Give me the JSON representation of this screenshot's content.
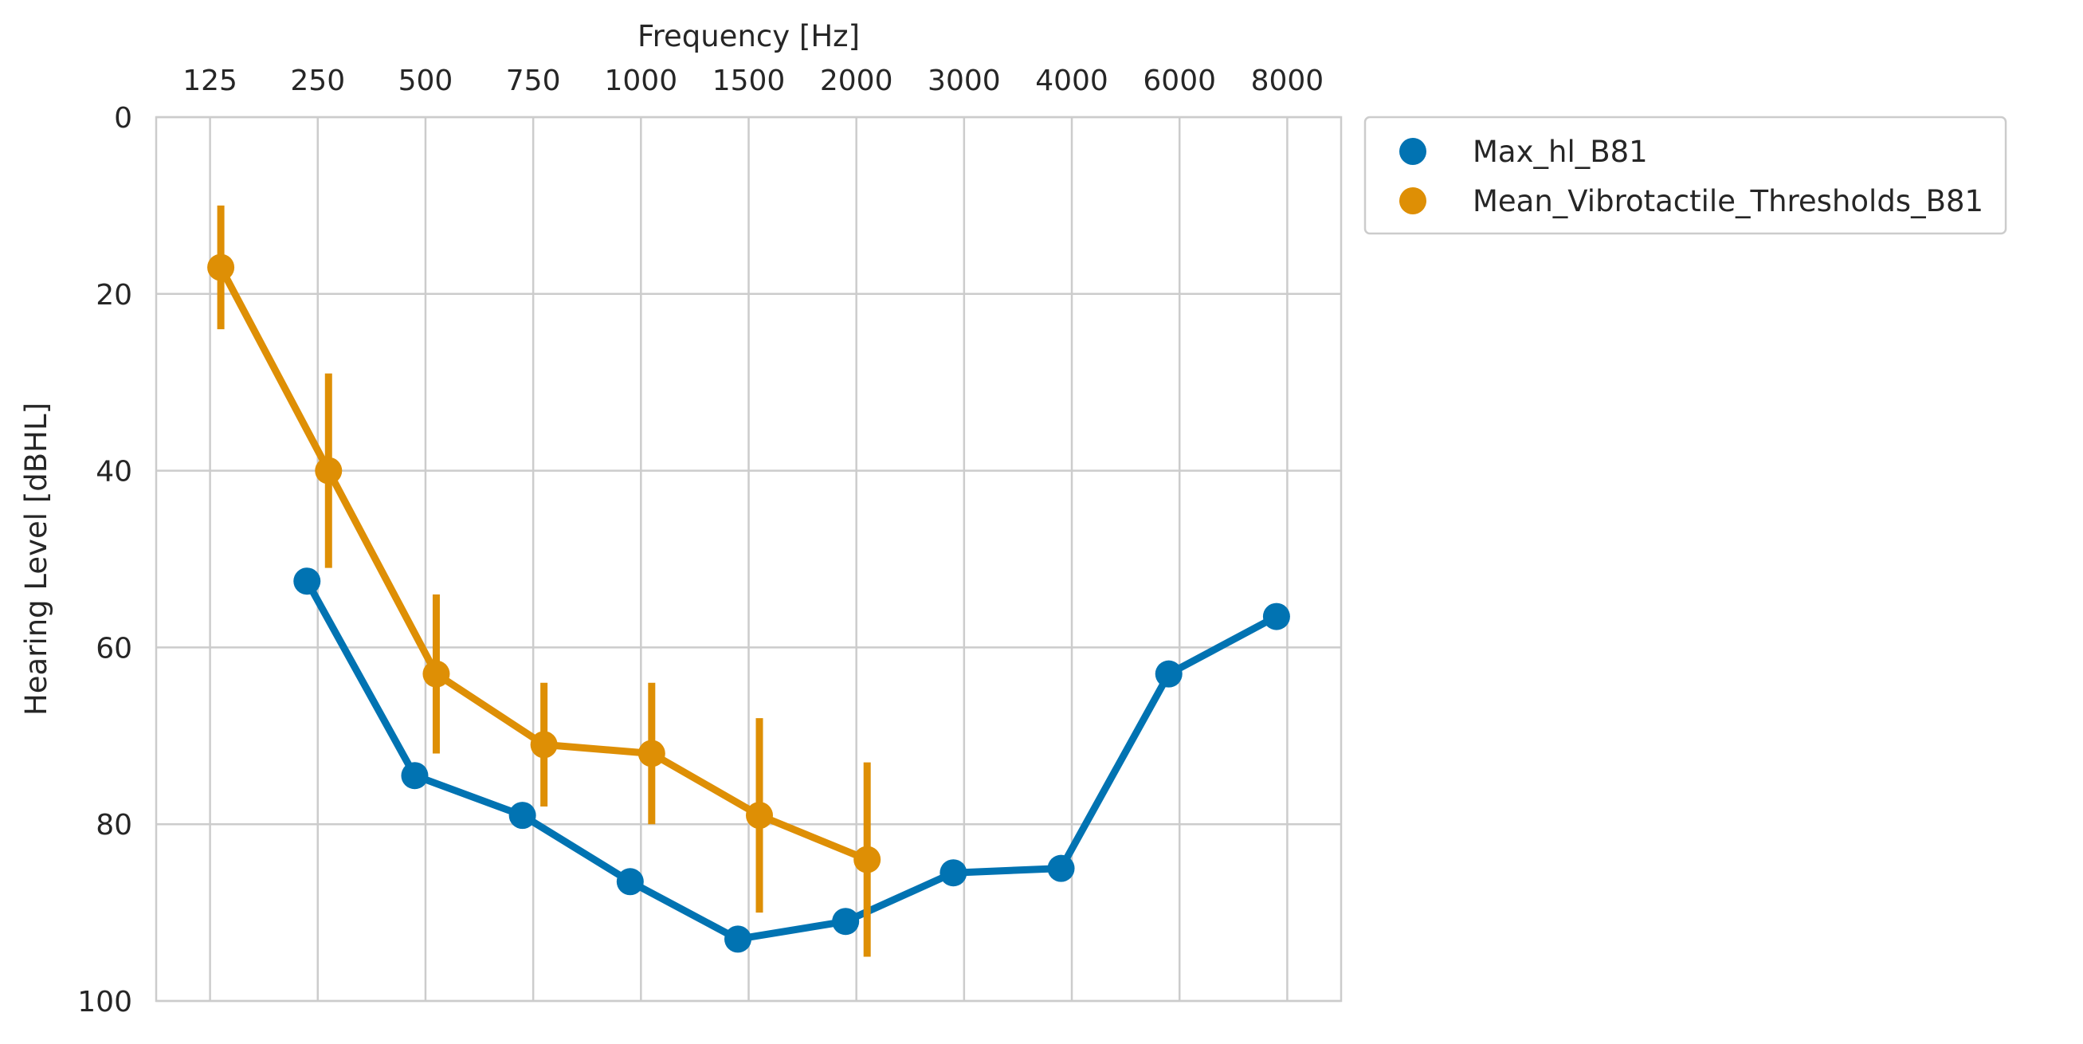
{
  "chart_data": {
    "type": "line",
    "title": "",
    "xlabel": "Frequency [Hz]",
    "ylabel": "Hearing Level [dBHL]",
    "categories": [
      "125",
      "250",
      "500",
      "750",
      "1000",
      "1500",
      "2000",
      "3000",
      "4000",
      "6000",
      "8000"
    ],
    "yticks": [
      "0",
      "20",
      "40",
      "60",
      "80",
      "100"
    ],
    "ylim": [
      0,
      100
    ],
    "y_inverted": true,
    "x_axis_position": "top",
    "grid": true,
    "legend": "outside-top-right",
    "series": [
      {
        "name": "Max_hl_B81",
        "color": "#0173b2",
        "values": [
          null,
          52.5,
          74.5,
          79,
          86.5,
          93,
          91,
          85.5,
          85,
          63,
          56.5
        ]
      },
      {
        "name": "Mean_Vibrotactile_Thresholds_B81",
        "color": "#de8f05",
        "values": [
          17,
          40,
          63,
          71,
          72,
          79,
          84,
          null,
          null,
          null,
          null
        ],
        "error_low": [
          10,
          29,
          54,
          64,
          64,
          68,
          73,
          null,
          null,
          null,
          null
        ],
        "error_high": [
          24,
          51,
          72,
          78,
          80,
          90,
          95,
          null,
          null,
          null,
          null
        ]
      }
    ]
  }
}
